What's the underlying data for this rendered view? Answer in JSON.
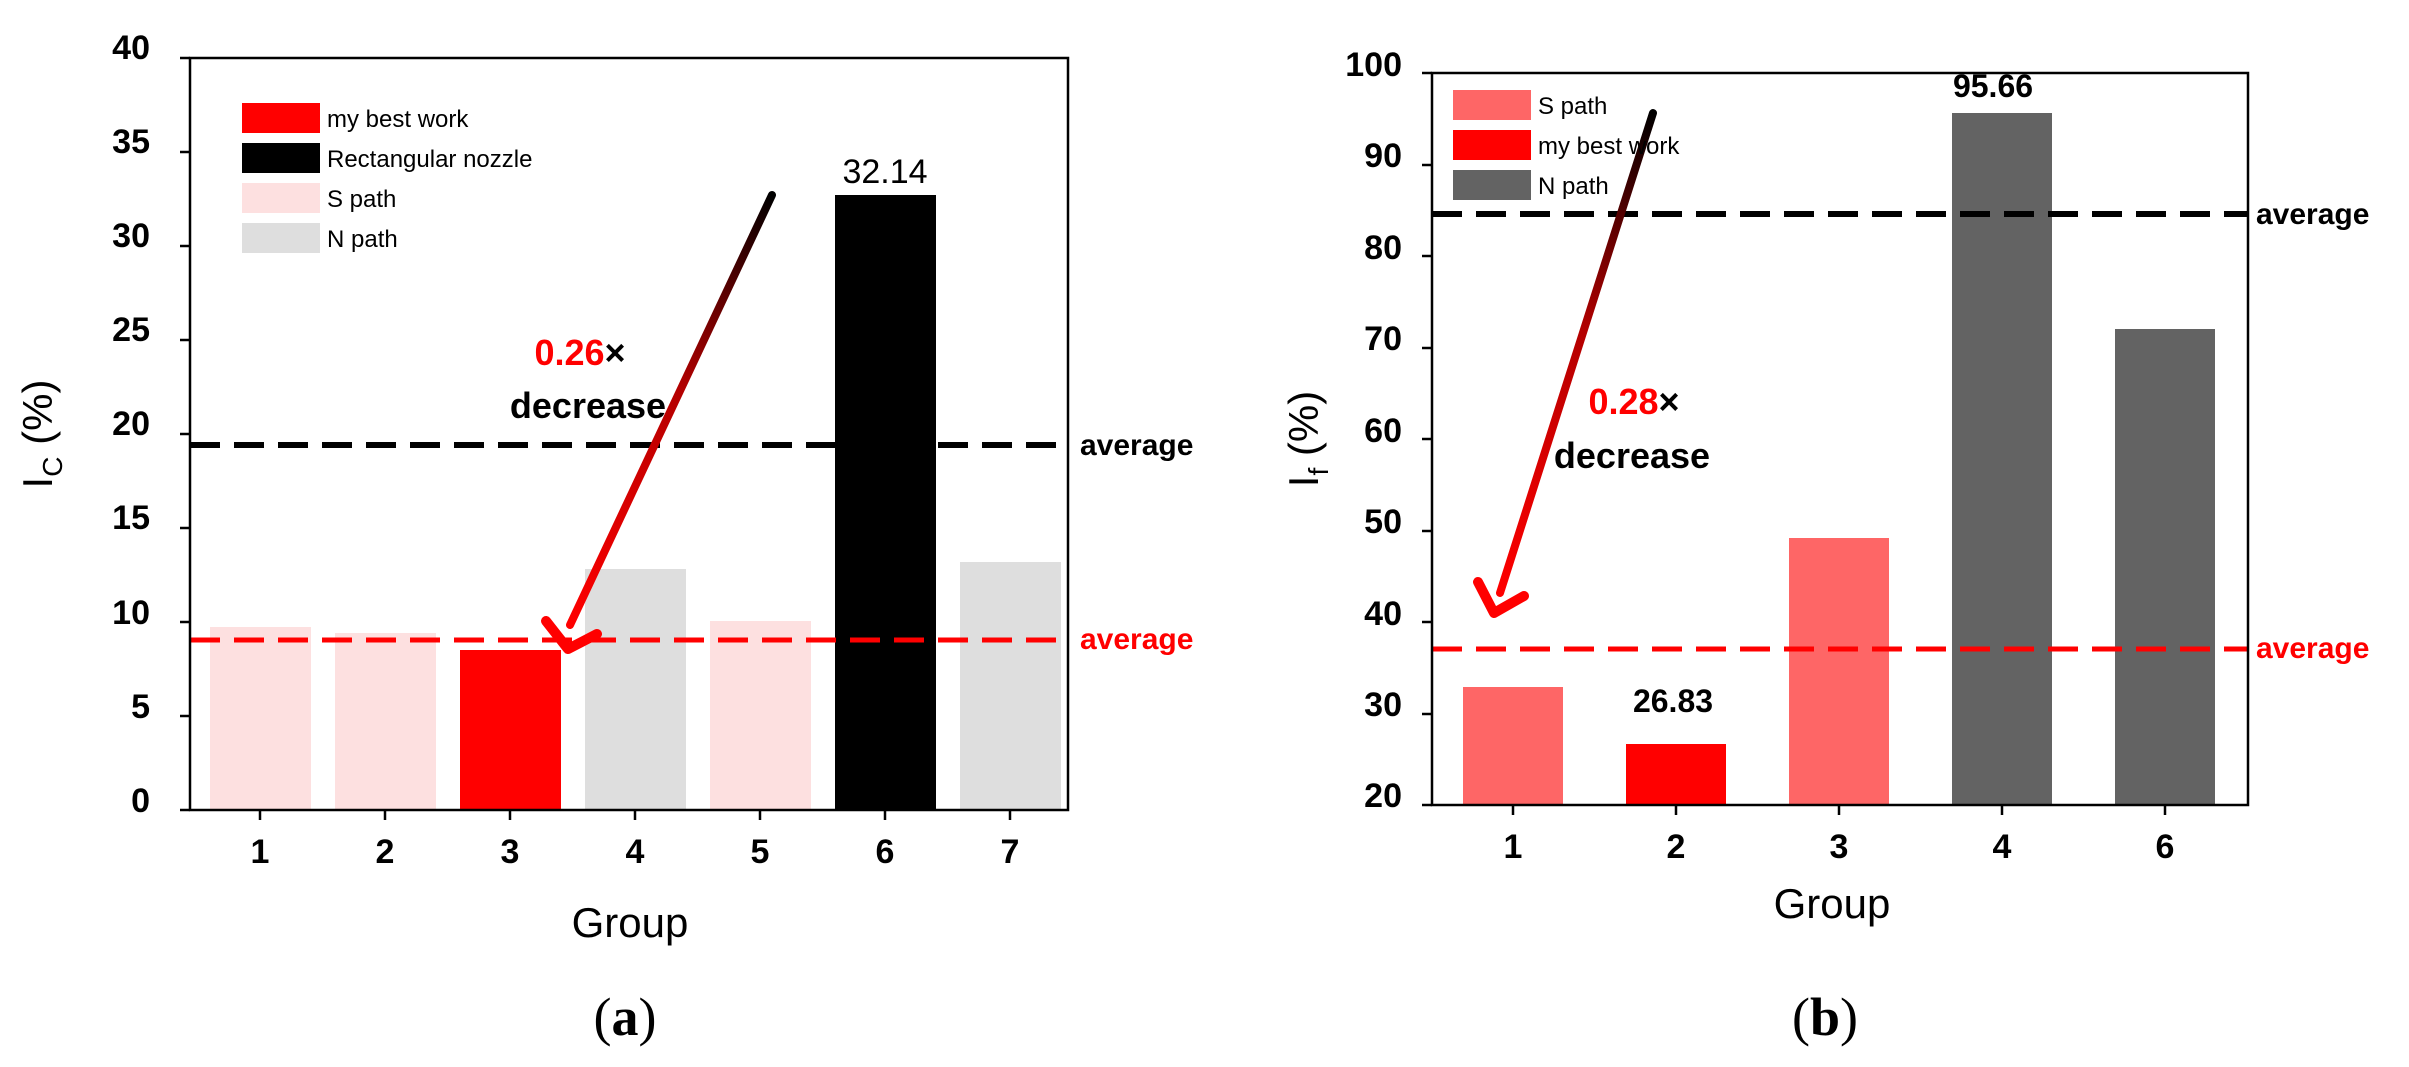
{
  "colors": {
    "red": "#ff0000",
    "black": "#000000",
    "light_pink": "#fde0e0",
    "light_gray": "#dedede",
    "salmon": "#fe6666",
    "dark_gray": "#636363"
  },
  "chart_data": [
    {
      "type": "bar",
      "caption_prefix": "(",
      "caption_letter": "a",
      "caption_suffix": ")",
      "xlabel": "Group",
      "ylabel_main": "I",
      "ylabel_sub": "C",
      "ylabel_unit": " (%)",
      "ylim": [
        0,
        40
      ],
      "yticks": [
        0,
        5,
        10,
        15,
        20,
        25,
        30,
        35,
        40
      ],
      "categories": [
        "1",
        "2",
        "3",
        "4",
        "5",
        "6",
        "7"
      ],
      "values": [
        9.5,
        9.2,
        8.3,
        12.8,
        10.0,
        32.14,
        13.2
      ],
      "bar_colors": [
        "#fde0e0",
        "#fde0e0",
        "#ff0000",
        "#dedede",
        "#fde0e0",
        "#000000",
        "#dedede"
      ],
      "legend": [
        {
          "label": "my best work",
          "color": "#ff0000"
        },
        {
          "label": "Rectangular nozzle",
          "color": "#000000"
        },
        {
          "label": "S path",
          "color": "#fde0e0"
        },
        {
          "label": "N path",
          "color": "#dedede"
        }
      ],
      "legend_position": "top-left",
      "averages": [
        {
          "label": "average",
          "value": 19.4,
          "color": "#000000"
        },
        {
          "label": "average",
          "value": 9.2,
          "color": "#ff0000"
        }
      ],
      "data_label": {
        "category": "6",
        "text": "32.14"
      },
      "annotation": {
        "factor": "0.26",
        "times": "×",
        "word": "decrease",
        "from_category": "6",
        "to_category": "3"
      }
    },
    {
      "type": "bar",
      "caption_prefix": "(",
      "caption_letter": "b",
      "caption_suffix": ")",
      "xlabel": "Group",
      "ylabel_main": "I",
      "ylabel_sub": "f",
      "ylabel_unit": " (%)",
      "ylim": [
        20,
        100
      ],
      "yticks": [
        20,
        30,
        40,
        50,
        60,
        70,
        80,
        90,
        100
      ],
      "categories": [
        "1",
        "2",
        "3",
        "4",
        "6"
      ],
      "values": [
        32.7,
        26.83,
        48.9,
        95.66,
        71.8
      ],
      "bar_colors": [
        "#fe6666",
        "#ff0000",
        "#fe6666",
        "#636363",
        "#636363"
      ],
      "legend": [
        {
          "label": "S path",
          "color": "#fe6666"
        },
        {
          "label": "my best work",
          "color": "#ff0000"
        },
        {
          "label": "N path",
          "color": "#636363"
        }
      ],
      "legend_position": "top-left",
      "averages": [
        {
          "label": "average",
          "value": 83.7,
          "color": "#000000"
        },
        {
          "label": "average",
          "value": 36.2,
          "color": "#ff0000"
        }
      ],
      "data_labels": [
        {
          "category": "4",
          "text": "95.66"
        },
        {
          "category": "2",
          "text": "26.83"
        }
      ],
      "annotation": {
        "factor": "0.28",
        "times": "×",
        "word": "decrease",
        "from_category": "4",
        "to_category": "2"
      }
    }
  ]
}
